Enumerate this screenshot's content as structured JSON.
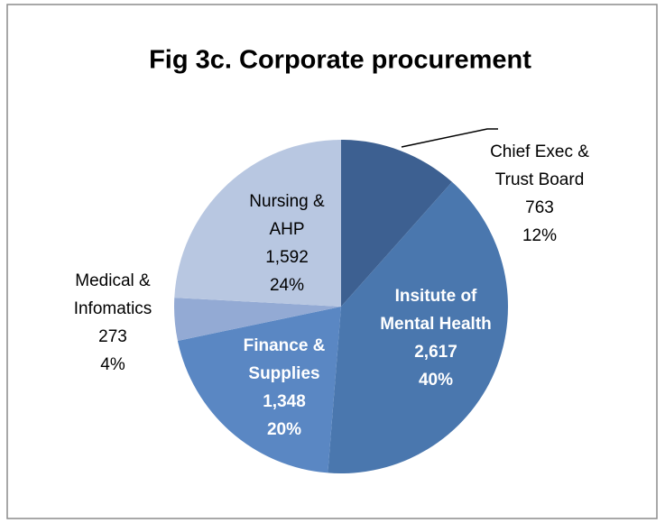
{
  "chart_data": {
    "type": "pie",
    "title": "Fig 3c. Corporate procurement",
    "categories": [
      "Chief Exec & Trust Board",
      "Insitute of Mental Health",
      "Finance & Supplies",
      "Medical & Infomatics",
      "Nursing & AHP"
    ],
    "values": [
      763,
      2617,
      1348,
      273,
      1592
    ],
    "value_labels": [
      "763",
      "2,617",
      "1,348",
      "273",
      "1,592"
    ],
    "percent_labels": [
      "12%",
      "40%",
      "20%",
      "4%",
      "24%"
    ],
    "colors": [
      "#3d6091",
      "#4a77ae",
      "#5a87c3",
      "#93aad4",
      "#b8c7e1"
    ]
  }
}
